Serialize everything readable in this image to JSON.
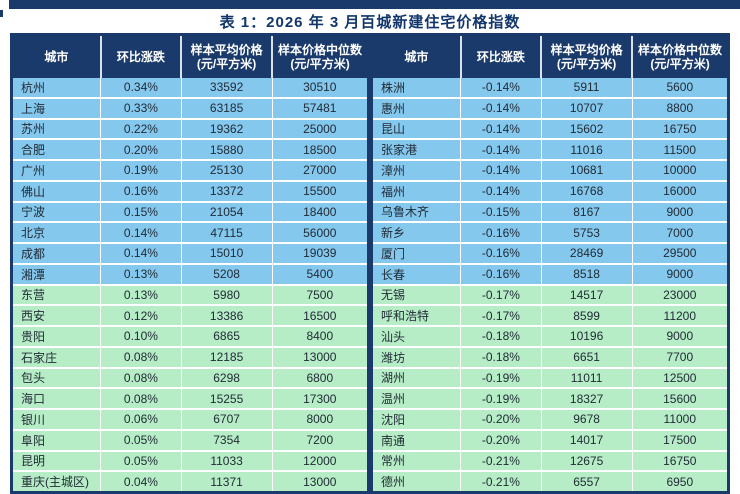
{
  "title": "表 1：2026 年 3 月百城新建住宅价格指数",
  "columns": [
    {
      "label": "城市",
      "sub": ""
    },
    {
      "label": "环比涨跌",
      "sub": ""
    },
    {
      "label": "样本平均价格",
      "sub": "(元/平方米)"
    },
    {
      "label": "样本价格中位数",
      "sub": "(元/平方米)"
    }
  ],
  "colors": {
    "header_bg": "#1a3a6b",
    "row_blue": "#85c8ee",
    "row_green": "#b6edc6",
    "title": "#12366b",
    "top_bar": "#1a3a6b"
  },
  "tables": {
    "left": {
      "rows": [
        {
          "tone": "blue",
          "cells": [
            "杭州",
            "0.34%",
            "33592",
            "30510"
          ]
        },
        {
          "tone": "blue",
          "cells": [
            "上海",
            "0.33%",
            "63185",
            "57481"
          ]
        },
        {
          "tone": "blue",
          "cells": [
            "苏州",
            "0.22%",
            "19362",
            "25000"
          ]
        },
        {
          "tone": "blue",
          "cells": [
            "合肥",
            "0.20%",
            "15880",
            "18500"
          ]
        },
        {
          "tone": "blue",
          "cells": [
            "广州",
            "0.19%",
            "25130",
            "27000"
          ]
        },
        {
          "tone": "blue",
          "cells": [
            "佛山",
            "0.16%",
            "13372",
            "15500"
          ]
        },
        {
          "tone": "blue",
          "cells": [
            "宁波",
            "0.15%",
            "21054",
            "18400"
          ]
        },
        {
          "tone": "blue",
          "cells": [
            "北京",
            "0.14%",
            "47115",
            "56000"
          ]
        },
        {
          "tone": "blue",
          "cells": [
            "成都",
            "0.14%",
            "15010",
            "19039"
          ]
        },
        {
          "tone": "blue",
          "cells": [
            "湘潭",
            "0.13%",
            "5208",
            "5400"
          ]
        },
        {
          "tone": "green",
          "cells": [
            "东营",
            "0.13%",
            "5980",
            "7500"
          ]
        },
        {
          "tone": "green",
          "cells": [
            "西安",
            "0.12%",
            "13386",
            "16500"
          ]
        },
        {
          "tone": "green",
          "cells": [
            "贵阳",
            "0.10%",
            "6865",
            "8400"
          ]
        },
        {
          "tone": "green",
          "cells": [
            "石家庄",
            "0.08%",
            "12185",
            "13000"
          ]
        },
        {
          "tone": "green",
          "cells": [
            "包头",
            "0.08%",
            "6298",
            "6800"
          ]
        },
        {
          "tone": "green",
          "cells": [
            "海口",
            "0.08%",
            "15255",
            "17300"
          ]
        },
        {
          "tone": "green",
          "cells": [
            "银川",
            "0.06%",
            "6707",
            "8000"
          ]
        },
        {
          "tone": "green",
          "cells": [
            "阜阳",
            "0.05%",
            "7354",
            "7200"
          ]
        },
        {
          "tone": "green",
          "cells": [
            "昆明",
            "0.05%",
            "11033",
            "12000"
          ]
        },
        {
          "tone": "green",
          "cells": [
            "重庆(主城区)",
            "0.04%",
            "11371",
            "13000"
          ]
        }
      ]
    },
    "right": {
      "rows": [
        {
          "tone": "blue",
          "cells": [
            "株洲",
            "-0.14%",
            "5911",
            "5600"
          ]
        },
        {
          "tone": "blue",
          "cells": [
            "惠州",
            "-0.14%",
            "10707",
            "8800"
          ]
        },
        {
          "tone": "blue",
          "cells": [
            "昆山",
            "-0.14%",
            "15602",
            "16750"
          ]
        },
        {
          "tone": "blue",
          "cells": [
            "张家港",
            "-0.14%",
            "11016",
            "11500"
          ]
        },
        {
          "tone": "blue",
          "cells": [
            "漳州",
            "-0.14%",
            "10681",
            "10000"
          ]
        },
        {
          "tone": "blue",
          "cells": [
            "福州",
            "-0.14%",
            "16768",
            "16000"
          ]
        },
        {
          "tone": "blue",
          "cells": [
            "乌鲁木齐",
            "-0.15%",
            "8167",
            "9000"
          ]
        },
        {
          "tone": "blue",
          "cells": [
            "新乡",
            "-0.16%",
            "5753",
            "7000"
          ]
        },
        {
          "tone": "blue",
          "cells": [
            "厦门",
            "-0.16%",
            "28469",
            "29500"
          ]
        },
        {
          "tone": "blue",
          "cells": [
            "长春",
            "-0.16%",
            "8518",
            "9000"
          ]
        },
        {
          "tone": "green",
          "cells": [
            "无锡",
            "-0.17%",
            "14517",
            "23000"
          ]
        },
        {
          "tone": "green",
          "cells": [
            "呼和浩特",
            "-0.17%",
            "8599",
            "11200"
          ]
        },
        {
          "tone": "green",
          "cells": [
            "汕头",
            "-0.18%",
            "10196",
            "9000"
          ]
        },
        {
          "tone": "green",
          "cells": [
            "潍坊",
            "-0.18%",
            "6651",
            "7700"
          ]
        },
        {
          "tone": "green",
          "cells": [
            "湖州",
            "-0.19%",
            "11011",
            "12500"
          ]
        },
        {
          "tone": "green",
          "cells": [
            "温州",
            "-0.19%",
            "18327",
            "15600"
          ]
        },
        {
          "tone": "green",
          "cells": [
            "沈阳",
            "-0.20%",
            "9678",
            "11000"
          ]
        },
        {
          "tone": "green",
          "cells": [
            "南通",
            "-0.20%",
            "14017",
            "17500"
          ]
        },
        {
          "tone": "green",
          "cells": [
            "常州",
            "-0.21%",
            "12675",
            "16750"
          ]
        },
        {
          "tone": "green",
          "cells": [
            "德州",
            "-0.21%",
            "6557",
            "6950"
          ]
        }
      ]
    }
  }
}
